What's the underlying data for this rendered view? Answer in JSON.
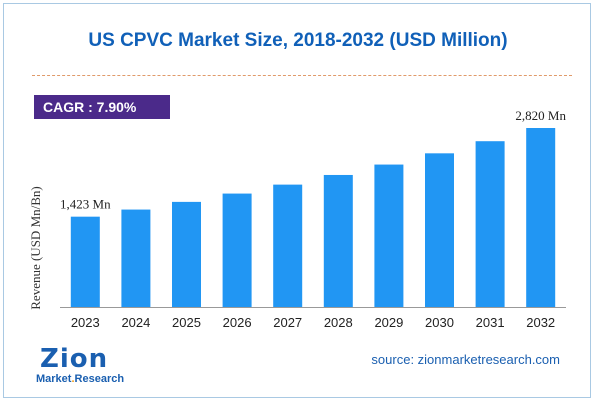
{
  "chart_data": {
    "type": "bar",
    "title": "US CPVC Market Size, 2018-2032 (USD Million)",
    "ylabel": "Revenue (USD Mn/Bn)",
    "xlabel": "",
    "categories": [
      "2023",
      "2024",
      "2025",
      "2026",
      "2027",
      "2028",
      "2029",
      "2030",
      "2031",
      "2032"
    ],
    "values": [
      1423,
      1535,
      1656,
      1787,
      1928,
      2080,
      2244,
      2421,
      2612,
      2820
    ],
    "ylim": [
      0,
      3100
    ],
    "data_labels": [
      {
        "index": 0,
        "text": "1,423 Mn"
      },
      {
        "index": 9,
        "text": "2,820 Mn"
      }
    ],
    "grid": false,
    "bar_color": "#2196f3"
  },
  "cagr": {
    "label": "CAGR :",
    "value": "7.90%"
  },
  "logo": {
    "main": "Zion",
    "sub_prefix": "Market",
    "sub_dot": ".",
    "sub_suffix": "Research"
  },
  "source": "source: zionmarketresearch.com"
}
